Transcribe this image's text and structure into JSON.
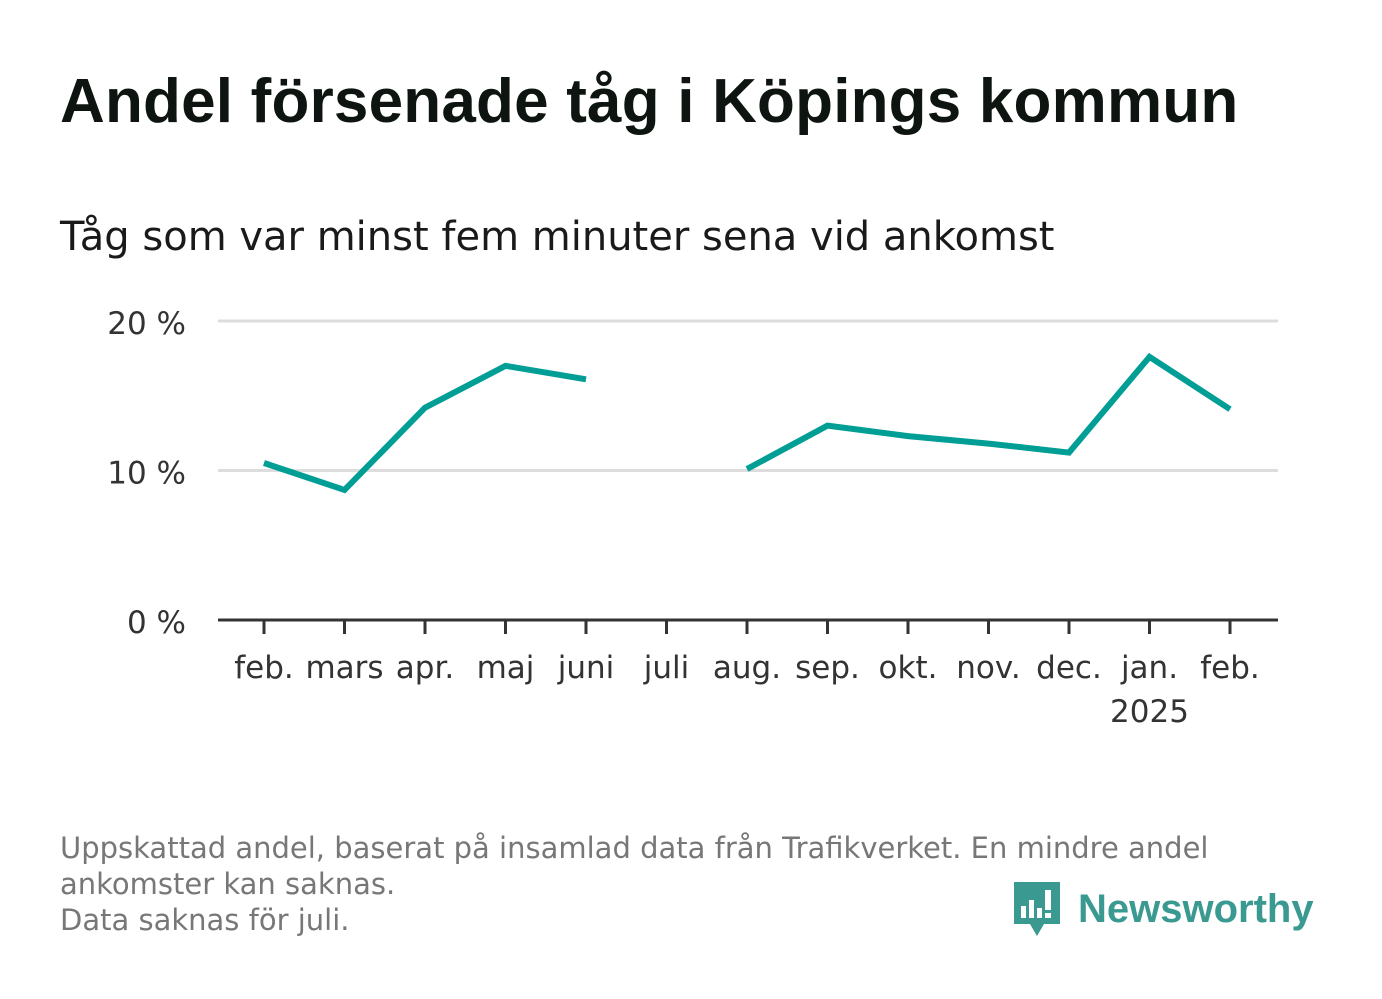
{
  "header": {
    "title": "Andel försenade tåg i Köpings kommun",
    "subtitle": "Tåg som var minst fem minuter sena vid ankomst"
  },
  "chart_data": {
    "type": "line",
    "categories": [
      "feb.",
      "mars",
      "apr.",
      "maj",
      "juni",
      "juli",
      "aug.",
      "sep.",
      "okt.",
      "nov.",
      "dec.",
      "jan.",
      "feb."
    ],
    "category_sublabels": [
      "",
      "",
      "",
      "",
      "",
      "",
      "",
      "",
      "",
      "",
      "",
      "2025",
      ""
    ],
    "series": [
      {
        "values": [
          10.5,
          8.7,
          14.2,
          17.0,
          16.1,
          null,
          10.1,
          13.0,
          12.3,
          11.8,
          11.2,
          17.6,
          14.1
        ]
      }
    ],
    "ylim": [
      0,
      20
    ],
    "yticks": [
      0,
      10,
      20
    ],
    "ytick_labels": [
      "0 %",
      "10 %",
      "20 %"
    ],
    "grid": true,
    "colors": {
      "line": "#009e95",
      "grid": "#dddddd",
      "axis": "#333333"
    }
  },
  "footer": {
    "note_line1": "Uppskattad andel, baserat på insamlad data från Trafikverket. En mindre andel",
    "note_line2": "ankomster kan saknas.",
    "note_line3": "Data saknas för juli."
  },
  "brand": {
    "name": "Newsworthy",
    "logo_icon": "newsworthy-logo-icon",
    "color": "#3a9a91"
  }
}
